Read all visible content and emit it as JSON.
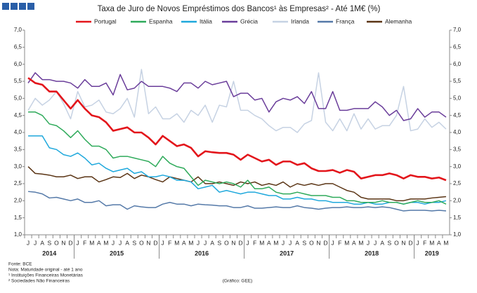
{
  "chart_data": {
    "type": "line",
    "title": "Taxa de Juro de Novos Empréstimos dos Bancos¹ às Empresas² - Até 1M€ (%)",
    "categories": [
      "J",
      "J",
      "A",
      "S",
      "O",
      "N",
      "D",
      "J",
      "F",
      "M",
      "A",
      "M",
      "J",
      "J",
      "A",
      "S",
      "O",
      "N",
      "D",
      "J",
      "F",
      "M",
      "A",
      "M",
      "J",
      "J",
      "A",
      "S",
      "O",
      "N",
      "D",
      "J",
      "F",
      "M",
      "A",
      "M",
      "J",
      "J",
      "A",
      "S",
      "O",
      "N",
      "D",
      "J",
      "F",
      "M",
      "A",
      "M",
      "J",
      "J",
      "A",
      "S",
      "O",
      "N",
      "D",
      "J",
      "F",
      "M",
      "A",
      "M"
    ],
    "years": [
      "2014",
      "2015",
      "2016",
      "2017",
      "2018",
      "2019"
    ],
    "ylim": [
      1,
      7
    ],
    "yticks": [
      {
        "value": 1,
        "label": "1,0"
      },
      {
        "value": 1.5,
        "label": "1,5"
      },
      {
        "value": 2,
        "label": "2,0"
      },
      {
        "value": 2.5,
        "label": "2,5"
      },
      {
        "value": 3,
        "label": "3,0"
      },
      {
        "value": 3.5,
        "label": "3,5"
      },
      {
        "value": 4,
        "label": "4,0"
      },
      {
        "value": 4.5,
        "label": "4,5"
      },
      {
        "value": 5,
        "label": "5,0"
      },
      {
        "value": 5.5,
        "label": "5,5"
      },
      {
        "value": 6,
        "label": "6,0"
      },
      {
        "value": 6.5,
        "label": "6,5"
      },
      {
        "value": 7,
        "label": "7,0"
      }
    ],
    "y2lim": [
      1,
      7
    ],
    "y2ticks": [
      {
        "value": 1,
        "label": "1,0"
      },
      {
        "value": 1.5,
        "label": "1,5"
      },
      {
        "value": 2,
        "label": "2,0"
      },
      {
        "value": 2.5,
        "label": "2,5"
      },
      {
        "value": 3,
        "label": "3,0"
      },
      {
        "value": 3.5,
        "label": "3,5"
      },
      {
        "value": 4,
        "label": "4,0"
      },
      {
        "value": 4.5,
        "label": "4,5"
      },
      {
        "value": 5,
        "label": "5,0"
      },
      {
        "value": 5.5,
        "label": "5,5"
      },
      {
        "value": 6,
        "label": "6,0"
      },
      {
        "value": 6.5,
        "label": "6,5"
      },
      {
        "value": 7,
        "label": "7,0"
      }
    ],
    "grid": false,
    "legend": "top",
    "series": [
      {
        "name": "Portugal",
        "color": "#e3151b",
        "values": [
          5.6,
          5.45,
          5.4,
          5.2,
          5.2,
          4.95,
          4.7,
          4.95,
          4.7,
          4.5,
          4.45,
          4.3,
          4.05,
          4.1,
          4.15,
          4.0,
          4.0,
          3.85,
          3.65,
          3.9,
          3.75,
          3.6,
          3.65,
          3.55,
          3.3,
          3.45,
          3.42,
          3.4,
          3.4,
          3.35,
          3.2,
          3.35,
          3.25,
          3.15,
          3.2,
          3.05,
          3.15,
          3.15,
          3.05,
          3.1,
          2.95,
          2.87,
          2.87,
          2.9,
          2.82,
          2.9,
          2.85,
          2.65,
          2.7,
          2.75,
          2.75,
          2.8,
          2.75,
          2.65,
          2.75,
          2.7,
          2.7,
          2.65,
          2.68,
          2.6
        ]
      },
      {
        "name": "Espanha",
        "color": "#2eaa5a",
        "values": [
          4.6,
          4.6,
          4.5,
          4.25,
          4.2,
          4.05,
          3.85,
          4.05,
          3.8,
          3.6,
          3.6,
          3.5,
          3.25,
          3.3,
          3.3,
          3.25,
          3.2,
          3.15,
          3.0,
          3.3,
          3.1,
          3.0,
          2.95,
          2.7,
          2.45,
          2.6,
          2.55,
          2.5,
          2.55,
          2.5,
          2.4,
          2.6,
          2.35,
          2.35,
          2.4,
          2.25,
          2.2,
          2.2,
          2.25,
          2.2,
          2.15,
          2.15,
          2.15,
          2.1,
          2.1,
          2.0,
          2.0,
          1.95,
          1.95,
          1.95,
          2.0,
          1.95,
          1.95,
          1.9,
          1.95,
          2.0,
          1.95,
          1.95,
          2.0,
          1.9
        ]
      },
      {
        "name": "Itália",
        "color": "#1ea8dc",
        "values": [
          3.9,
          3.9,
          3.9,
          3.55,
          3.5,
          3.35,
          3.3,
          3.4,
          3.25,
          3.05,
          3.1,
          2.95,
          2.85,
          2.9,
          2.95,
          2.8,
          2.85,
          2.7,
          2.7,
          2.75,
          2.7,
          2.6,
          2.6,
          2.55,
          2.35,
          2.4,
          2.45,
          2.25,
          2.3,
          2.25,
          2.2,
          2.25,
          2.25,
          2.2,
          2.15,
          2.15,
          2.05,
          2.05,
          2.1,
          2.05,
          2.05,
          2.0,
          2.0,
          1.95,
          1.95,
          1.95,
          1.9,
          1.9,
          1.95,
          1.9,
          1.9,
          1.95,
          1.95,
          1.9,
          1.95,
          1.95,
          1.9,
          1.95,
          1.95,
          2.0
        ]
      },
      {
        "name": "Grécia",
        "color": "#6a3d9a",
        "values": [
          5.45,
          5.75,
          5.55,
          5.55,
          5.5,
          5.5,
          5.45,
          5.3,
          5.55,
          5.35,
          5.35,
          5.45,
          5.1,
          5.7,
          5.25,
          5.3,
          5.5,
          5.35,
          5.35,
          5.35,
          5.3,
          5.2,
          5.45,
          5.45,
          5.3,
          5.5,
          5.4,
          5.45,
          5.5,
          5.05,
          5.15,
          5.15,
          4.95,
          5.0,
          4.6,
          4.9,
          5.0,
          4.95,
          5.05,
          4.85,
          5.2,
          4.7,
          4.7,
          5.2,
          4.65,
          4.65,
          4.7,
          4.7,
          4.7,
          4.9,
          4.75,
          4.5,
          4.65,
          4.35,
          4.4,
          4.7,
          4.45,
          4.6,
          4.6,
          4.45
        ]
      },
      {
        "name": "Irlanda",
        "color": "#c6d2e3",
        "values": [
          4.65,
          5.0,
          4.8,
          4.95,
          5.2,
          4.85,
          4.4,
          5.2,
          4.75,
          4.8,
          4.95,
          4.6,
          4.55,
          4.7,
          5.0,
          4.45,
          5.85,
          4.55,
          4.75,
          4.4,
          4.4,
          4.55,
          4.3,
          4.65,
          4.5,
          4.8,
          4.3,
          4.8,
          4.75,
          5.5,
          4.65,
          4.65,
          4.5,
          4.4,
          4.2,
          4.05,
          4.15,
          4.15,
          4.0,
          4.25,
          4.35,
          5.75,
          4.3,
          4.05,
          4.4,
          4.05,
          4.55,
          4.1,
          4.4,
          4.1,
          4.2,
          4.2,
          4.5,
          5.35,
          4.05,
          4.1,
          4.4,
          4.15,
          4.3,
          4.1
        ]
      },
      {
        "name": "França",
        "color": "#5479a8",
        "values": [
          2.27,
          2.25,
          2.2,
          2.08,
          2.1,
          2.05,
          2.0,
          2.05,
          1.95,
          1.95,
          2.0,
          1.85,
          1.88,
          1.88,
          1.75,
          1.85,
          1.82,
          1.8,
          1.8,
          1.9,
          1.95,
          1.9,
          1.9,
          1.85,
          1.9,
          1.88,
          1.87,
          1.85,
          1.85,
          1.8,
          1.8,
          1.85,
          1.78,
          1.78,
          1.8,
          1.82,
          1.8,
          1.8,
          1.85,
          1.8,
          1.78,
          1.75,
          1.78,
          1.8,
          1.8,
          1.82,
          1.8,
          1.8,
          1.82,
          1.8,
          1.82,
          1.8,
          1.75,
          1.7,
          1.72,
          1.72,
          1.72,
          1.7,
          1.72,
          1.7
        ]
      },
      {
        "name": "Alemanha",
        "color": "#5a3414",
        "values": [
          3.0,
          2.8,
          2.78,
          2.75,
          2.7,
          2.7,
          2.75,
          2.65,
          2.7,
          2.7,
          2.55,
          2.62,
          2.7,
          2.68,
          2.8,
          2.65,
          2.75,
          2.7,
          2.62,
          2.55,
          2.7,
          2.65,
          2.6,
          2.55,
          2.7,
          2.5,
          2.5,
          2.55,
          2.5,
          2.45,
          2.55,
          2.5,
          2.55,
          2.45,
          2.5,
          2.45,
          2.55,
          2.4,
          2.5,
          2.45,
          2.5,
          2.45,
          2.5,
          2.5,
          2.4,
          2.3,
          2.25,
          2.1,
          2.05,
          2.05,
          2.05,
          2.05,
          2.0,
          2.0,
          2.05,
          2.05,
          2.05,
          2.08,
          2.1,
          2.12
        ]
      }
    ]
  },
  "footer": {
    "source": "Fonte: BCE",
    "note": "Nota: Maturidade original - até 1 ano",
    "note1": "¹ Instituições Financeiras Monetárias",
    "note2": "² Sociedades Não Financeiras",
    "credit": "(Gráfico: GEE)"
  }
}
